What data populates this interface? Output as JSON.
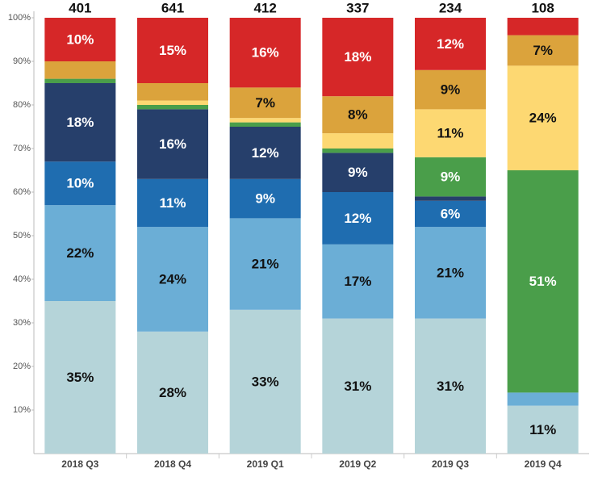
{
  "chart_data": {
    "type": "stacked_bar_percent",
    "categories": [
      "2018 Q3",
      "2018 Q4",
      "2019 Q1",
      "2019 Q2",
      "2019 Q3",
      "2019 Q4"
    ],
    "totals": [
      401,
      641,
      412,
      337,
      234,
      108
    ],
    "series": [
      {
        "color": "#b5d4d9",
        "values": [
          35,
          28,
          33,
          31,
          31,
          11
        ],
        "value_labels": [
          "35%",
          "28%",
          "33%",
          "31%",
          "31%",
          "11%"
        ]
      },
      {
        "color": "#6baed6",
        "values": [
          22,
          24,
          21,
          17,
          21,
          3
        ],
        "value_labels": [
          "22%",
          "24%",
          "21%",
          "17%",
          "21%",
          null
        ]
      },
      {
        "color": "#1f6db0",
        "values": [
          10,
          11,
          9,
          12,
          6,
          0
        ],
        "value_labels": [
          "10%",
          "11%",
          "9%",
          "12%",
          "6%",
          null
        ]
      },
      {
        "color": "#263f6b",
        "values": [
          18,
          16,
          12,
          9,
          1,
          0
        ],
        "value_labels": [
          "18%",
          "16%",
          "12%",
          "9%",
          null,
          null
        ]
      },
      {
        "color": "#4a9e4a",
        "values": [
          1,
          1,
          1,
          1,
          9,
          51
        ],
        "value_labels": [
          null,
          null,
          null,
          null,
          "9%",
          "51%"
        ]
      },
      {
        "color": "#fdd872",
        "values": [
          0,
          1,
          1,
          3.5,
          11,
          24
        ],
        "value_labels": [
          null,
          null,
          null,
          null,
          "11%",
          "24%"
        ]
      },
      {
        "color": "#dba33c",
        "values": [
          4,
          4,
          7,
          8.5,
          9,
          7
        ],
        "value_labels": [
          null,
          null,
          "7%",
          "8%",
          "9%",
          "7%"
        ]
      },
      {
        "color": "#d62728",
        "values": [
          10,
          15,
          16,
          18,
          12,
          4
        ],
        "value_labels": [
          "10%",
          "15%",
          "16%",
          "18%",
          "12%",
          null
        ]
      }
    ],
    "ylim": [
      0,
      100
    ],
    "yticks": [
      {
        "value": 10,
        "label": "10%"
      },
      {
        "value": 20,
        "label": "20%"
      },
      {
        "value": 30,
        "label": "30%"
      },
      {
        "value": 40,
        "label": "40%"
      },
      {
        "value": 50,
        "label": "50%"
      },
      {
        "value": 60,
        "label": "60%"
      },
      {
        "value": 70,
        "label": "70%"
      },
      {
        "value": 80,
        "label": "80%"
      },
      {
        "value": 90,
        "label": "90%"
      },
      {
        "value": 100,
        "label": "100%"
      }
    ]
  }
}
